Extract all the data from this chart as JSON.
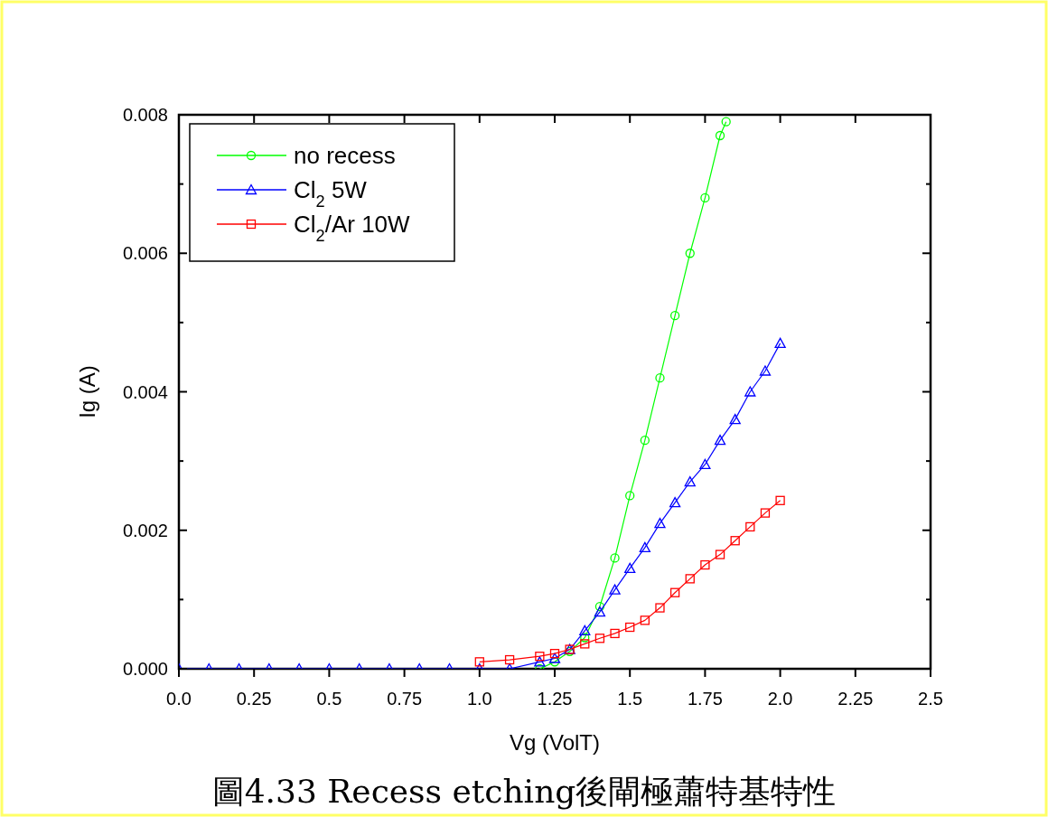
{
  "chart_data": {
    "type": "line",
    "xlabel": "Vg (VolT)",
    "ylabel": "Ig (A)",
    "annotations": [
      "圖4.33 Recess etching後閘極蕭特基特性"
    ],
    "xlim": [
      0,
      2.5
    ],
    "ylim": [
      0,
      0.008
    ],
    "xticks": [
      "0.0",
      0.25,
      "0.5",
      0.75,
      "1.0",
      1.25,
      "1.5",
      1.75,
      "2.0",
      2.25,
      "2.5"
    ],
    "yticks": [
      {
        "value": 0,
        "label": "0.000"
      },
      {
        "value": 0.001,
        "label": null
      },
      {
        "value": 0.002,
        "label": "0.002"
      },
      {
        "value": 0.003,
        "label": null
      },
      {
        "value": 0.004,
        "label": "0.004"
      },
      {
        "value": 0.005,
        "label": null
      },
      {
        "value": 0.006,
        "label": "0.006"
      },
      {
        "value": 0.007,
        "label": null
      },
      {
        "value": 0.008,
        "label": "0.008"
      }
    ],
    "legend": "top left",
    "grid": false,
    "series": [
      {
        "name": "no recess",
        "color": "#00ff00",
        "marker": "circle",
        "x": [
          1.2,
          1.25,
          1.3,
          1.35,
          1.4,
          1.45,
          1.5,
          1.55,
          1.6,
          1.65,
          1.7,
          1.75,
          1.8,
          1.82
        ],
        "values": [
          0,
          0.0001,
          0.00025,
          0.00045,
          0.0009,
          0.0016,
          0.0025,
          0.0033,
          0.0042,
          0.0051,
          0.006,
          0.0068,
          0.0077,
          0.0079
        ]
      },
      {
        "name": "Cl$_{2}$ 5W",
        "color": "#0000ff",
        "marker": "triangle",
        "x": [
          0,
          0.1,
          0.2,
          0.3,
          0.4,
          0.5,
          0.6,
          0.7,
          0.8,
          0.9,
          1.0,
          1.1,
          1.2,
          1.25,
          1.3,
          1.35,
          1.4,
          1.45,
          1.5,
          1.55,
          1.6,
          1.65,
          1.7,
          1.75,
          1.8,
          1.85,
          1.9,
          1.95,
          2.0
        ],
        "values": [
          0,
          0,
          0,
          0,
          0,
          0,
          0,
          0,
          0,
          0,
          0,
          0,
          0.0001,
          0.00015,
          0.00028,
          0.00055,
          0.00082,
          0.00114,
          0.00145,
          0.00175,
          0.0021,
          0.0024,
          0.0027,
          0.00295,
          0.0033,
          0.0036,
          0.004,
          0.0043,
          0.0047
        ]
      },
      {
        "name": "Cl$_{2}$/Ar 10W",
        "color": "#ff0000",
        "marker": "square",
        "x": [
          1.0,
          1.1,
          1.2,
          1.25,
          1.3,
          1.35,
          1.4,
          1.45,
          1.5,
          1.55,
          1.6,
          1.65,
          1.7,
          1.75,
          1.8,
          1.85,
          1.9,
          1.95,
          2.0
        ],
        "values": [
          0.0001,
          0.00013,
          0.00018,
          0.00022,
          0.00028,
          0.00036,
          0.00044,
          0.00051,
          0.0006,
          0.0007,
          0.00088,
          0.0011,
          0.0013,
          0.0015,
          0.00165,
          0.00185,
          0.00205,
          0.00225,
          0.00243
        ]
      }
    ]
  }
}
